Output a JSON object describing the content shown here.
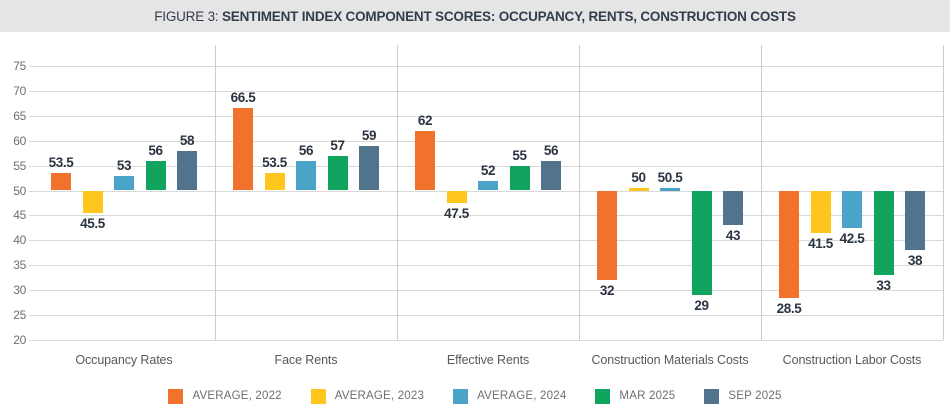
{
  "figure": {
    "title_prefix": "FIGURE 3: ",
    "title_main": "SENTIMENT INDEX COMPONENT SCORES: OCCUPANCY, RENTS, CONSTRUCTION COSTS"
  },
  "chart_data": {
    "type": "bar",
    "baseline": 50,
    "categories": [
      "Occupancy Rates",
      "Face Rents",
      "Effective Rents",
      "Construction Materials Costs",
      "Construction Labor Costs"
    ],
    "series": [
      {
        "name": "AVERAGE, 2022",
        "color": "#F1732B",
        "values": [
          53.5,
          66.5,
          62,
          32,
          28.5
        ]
      },
      {
        "name": "AVERAGE, 2023",
        "color": "#FFC61E",
        "values": [
          45.5,
          53.5,
          47.5,
          50,
          41.5
        ]
      },
      {
        "name": "AVERAGE, 2024",
        "color": "#4AA4C8",
        "values": [
          53,
          56,
          52,
          50.5,
          42.5
        ]
      },
      {
        "name": "MAR 2025",
        "color": "#10A45E",
        "values": [
          56,
          57,
          55,
          29,
          33
        ]
      },
      {
        "name": "SEP 2025",
        "color": "#51738C",
        "values": [
          58,
          59,
          56,
          43,
          38
        ]
      }
    ],
    "y_ticks": [
      75,
      70,
      65,
      60,
      55,
      50,
      45,
      40,
      35,
      30,
      25,
      20
    ],
    "ylim": [
      20,
      77
    ],
    "grid": true,
    "legend_position": "bottom"
  },
  "ui_colors": {
    "title_bar_background": "#e5e5e6",
    "title_text": "#333d4c",
    "gridline": "#d9d9d9",
    "divider": "#cccccc",
    "tick_text": "#6d6e71",
    "category_text": "#58595b",
    "value_label_text": "#2b3441"
  }
}
